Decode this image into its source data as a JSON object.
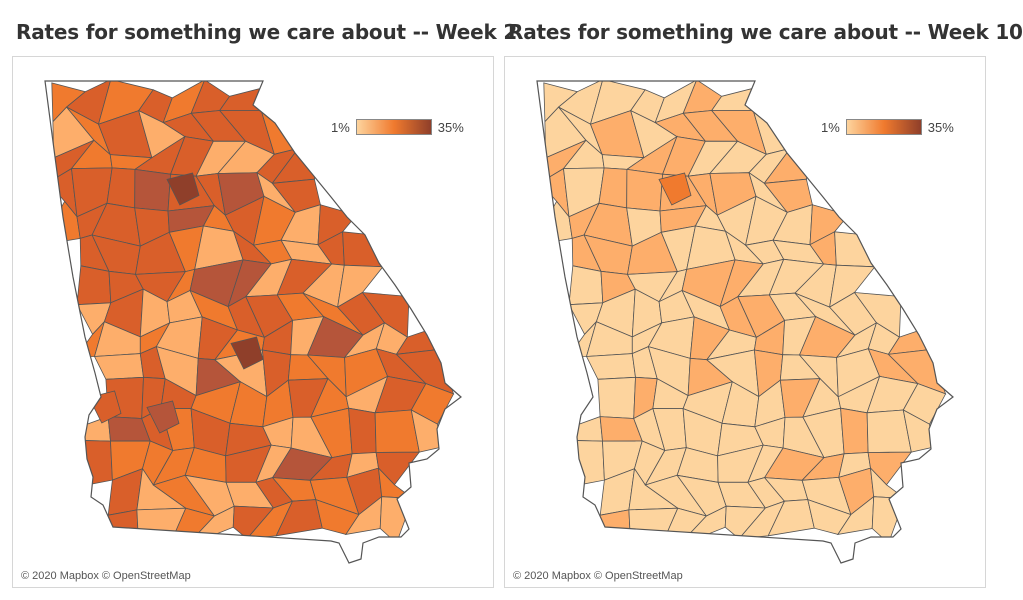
{
  "panels": [
    {
      "title": "Rates for something we care about -- Week 2",
      "legend_min": "1%",
      "legend_max": "35%",
      "credit": "© 2020 Mapbox © OpenStreetMap",
      "level": "high"
    },
    {
      "title": "Rates for something we care about -- Week 10",
      "legend_min": "1%",
      "legend_max": "35%",
      "credit": "© 2020 Mapbox © OpenStreetMap",
      "level": "low"
    }
  ],
  "colors": {
    "ramp": [
      "#fdd49e",
      "#fdae6b",
      "#f07a2e",
      "#d95f2a",
      "#b5553a",
      "#8f3f2a"
    ],
    "border": "#555555"
  }
}
